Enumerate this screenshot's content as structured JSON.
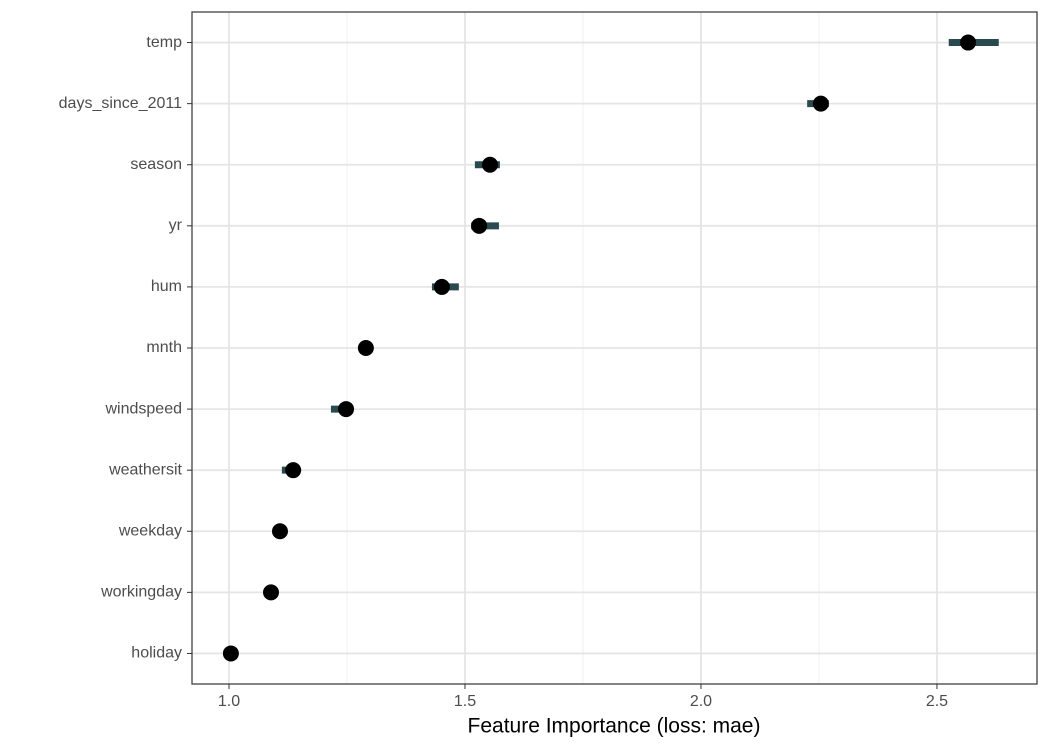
{
  "chart_data": {
    "type": "dot-interval",
    "xlabel": "Feature Importance (loss: mae)",
    "categories": [
      "temp",
      "days_since_2011",
      "season",
      "yr",
      "hum",
      "mnth",
      "windspeed",
      "weathersit",
      "weekday",
      "workingday",
      "holiday"
    ],
    "values": [
      2.566,
      2.254,
      1.553,
      1.53,
      1.451,
      1.29,
      1.248,
      1.136,
      1.108,
      1.089,
      1.004
    ],
    "lower": [
      2.525,
      2.225,
      1.521,
      1.513,
      1.43,
      1.275,
      1.216,
      1.112,
      1.1,
      1.083,
      1.0
    ],
    "upper": [
      2.631,
      2.271,
      1.574,
      1.572,
      1.487,
      1.305,
      1.256,
      1.146,
      1.115,
      1.095,
      1.008
    ],
    "color": "#000000",
    "interval_color": "#2b4a4f",
    "xlim": [
      0.9216,
      2.712
    ],
    "xticks": [
      {
        "value": 1,
        "label": "1.0"
      },
      1.5,
      {
        "value": 2,
        "label": "2.0"
      },
      2.5
    ],
    "minor_xticks": [
      1.25,
      1.75,
      2.25
    ],
    "grid": true
  }
}
